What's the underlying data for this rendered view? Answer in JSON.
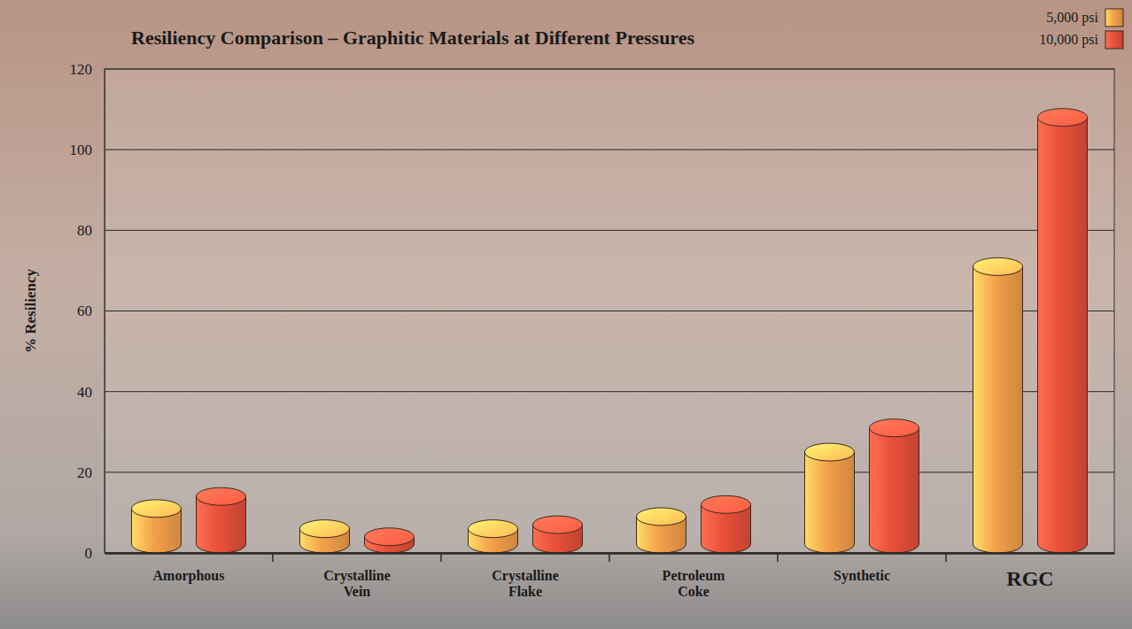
{
  "chart_data": {
    "type": "bar",
    "title": "Resiliency Comparison – Graphitic Materials at Different Pressures",
    "y_label": "% Resiliency",
    "categories": [
      "Amorphous",
      "Crystalline Vein",
      "Crystalline Flake",
      "Petroleum Coke",
      "Synthetic",
      "RGC"
    ],
    "series": [
      {
        "name": "5,000 psi",
        "color": "#f5a04a",
        "values": [
          11,
          6,
          6,
          9,
          25,
          71
        ]
      },
      {
        "name": "10,000 psi",
        "color": "#e8503a",
        "values": [
          14,
          4,
          7,
          12,
          31,
          108
        ]
      }
    ],
    "ylim": [
      0,
      120
    ],
    "yticks": [
      0,
      20,
      40,
      60,
      80,
      100,
      120
    ],
    "grid": true,
    "legend": "upper right"
  }
}
